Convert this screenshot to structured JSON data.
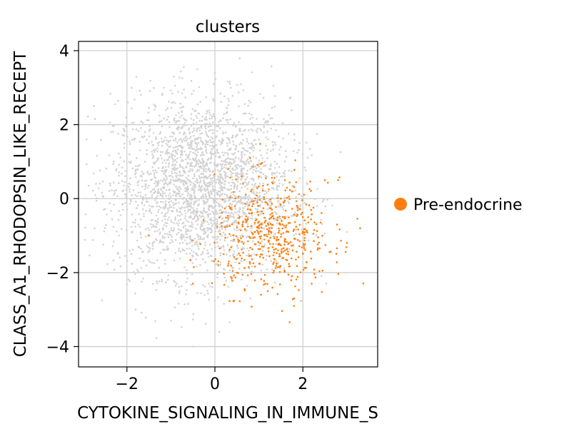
{
  "chart_data": {
    "type": "scatter",
    "title": "clusters",
    "xlabel": "CYTOKINE_SIGNALING_IN_IMMUNE_S",
    "ylabel": "CLASS_A1_RHODOPSIN_LIKE_RECEPT",
    "xlim": [
      -3.1,
      3.7
    ],
    "ylim": [
      -4.55,
      4.25
    ],
    "xticks": [
      -2,
      0,
      2
    ],
    "xtick_labels": [
      "−2",
      "0",
      "2"
    ],
    "yticks": [
      -4,
      -2,
      0,
      2,
      4
    ],
    "ytick_labels": [
      "−4",
      "−2",
      "0",
      "2",
      "4"
    ],
    "grid": true,
    "legend_position": "right",
    "series": [
      {
        "name": "",
        "color": "#d3d3d3",
        "point_count": 2600,
        "distribution": {
          "x_mean": -0.3,
          "y_mean": 0.3,
          "x_sd": 1.0,
          "y_sd": 1.2
        },
        "x": [
          -2.7,
          -2.5,
          -2.3,
          -2.1,
          -1.9,
          -1.5,
          -1.2,
          -0.8,
          -0.4,
          0.0,
          0.3,
          0.6,
          1.0,
          1.5,
          2.0,
          -1.0,
          -0.5,
          0.1,
          -1.8,
          -0.2
        ],
        "y": [
          0.4,
          -0.8,
          1.0,
          0.2,
          -1.5,
          1.5,
          2.8,
          -2.5,
          3.5,
          3.4,
          2.7,
          2.0,
          1.6,
          1.4,
          1.2,
          -3.3,
          -4.0,
          -3.6,
          -3.0,
          2.2
        ]
      },
      {
        "name": "Pre-endocrine",
        "color": "#ff7f0e",
        "point_count": 500,
        "distribution": {
          "x_mean": 1.3,
          "y_mean": -1.0,
          "x_sd": 0.65,
          "y_sd": 0.75
        },
        "x": [
          0.3,
          0.8,
          1.0,
          1.5,
          2.0,
          2.5,
          3.0,
          3.3,
          0.2,
          0.5,
          1.2,
          1.8,
          2.2,
          -1.5,
          -0.5,
          1.8,
          2.8
        ],
        "y": [
          0.8,
          1.1,
          0.6,
          0.0,
          -0.5,
          0.5,
          -1.2,
          -0.8,
          -1.5,
          -2.0,
          -2.5,
          -2.7,
          -2.3,
          -1.0,
          -2.3,
          -2.9,
          0.5
        ]
      }
    ],
    "legend": [
      {
        "label": "Pre-endocrine",
        "color": "#ff7f0e"
      }
    ]
  }
}
